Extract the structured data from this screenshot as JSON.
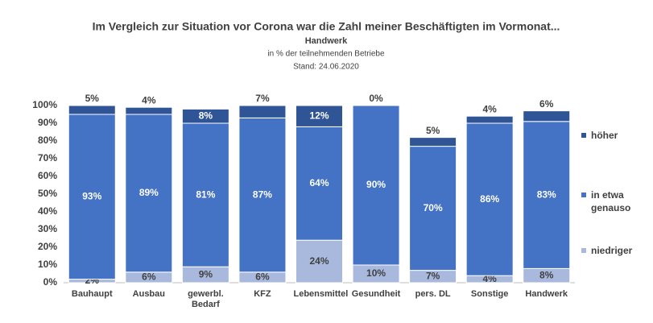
{
  "chart_data": {
    "type": "stacked_bar",
    "title": "Im Vergleich zur Situation vor Corona war die Zahl meiner Beschäftigten im Vormonat...",
    "subtitle": "Handwerk",
    "annotations": [
      "in % der teilnehmenden Betriebe",
      "Stand:  24.06.2020"
    ],
    "categories": [
      "Bauhaupt",
      "Ausbau",
      "gewerbl. Bedarf",
      "KFZ",
      "Lebensmittel",
      "Gesundheit",
      "pers. DL",
      "Sonstige",
      "Handwerk"
    ],
    "series": [
      {
        "name": "niedriger",
        "color": "#a9b9de",
        "values": [
          2,
          6,
          9,
          6,
          24,
          10,
          7,
          4,
          8
        ],
        "value_labels": [
          "2%",
          "6%",
          "9%",
          "6%",
          "24%",
          "10%",
          "7%",
          "4%",
          "8%"
        ]
      },
      {
        "name": "in etwa genauso",
        "color": "#4472c4",
        "values": [
          93,
          89,
          81,
          87,
          64,
          90,
          70,
          86,
          83
        ],
        "value_labels": [
          "93%",
          "89%",
          "81%",
          "87%",
          "64%",
          "90%",
          "70%",
          "86%",
          "83%"
        ]
      },
      {
        "name": "höher",
        "color": "#2f5597",
        "values": [
          5,
          4,
          8,
          7,
          12,
          0,
          5,
          4,
          6
        ],
        "value_labels": [
          "5%",
          "4%",
          "8%",
          "7%",
          "12%",
          "0%",
          "5%",
          "4%",
          "6%"
        ]
      }
    ],
    "ylim": [
      0,
      100
    ],
    "yticks": [
      {
        "value": 0,
        "label": "0%"
      },
      {
        "value": 10,
        "label": "10%"
      },
      {
        "value": 20,
        "label": "20%"
      },
      {
        "value": 30,
        "label": "30%"
      },
      {
        "value": 40,
        "label": "40%"
      },
      {
        "value": 50,
        "label": "50%"
      },
      {
        "value": 60,
        "label": "60%"
      },
      {
        "value": 70,
        "label": "70%"
      },
      {
        "value": 80,
        "label": "80%"
      },
      {
        "value": 90,
        "label": "90%"
      },
      {
        "value": 100,
        "label": "100%"
      }
    ],
    "legend": "right"
  }
}
